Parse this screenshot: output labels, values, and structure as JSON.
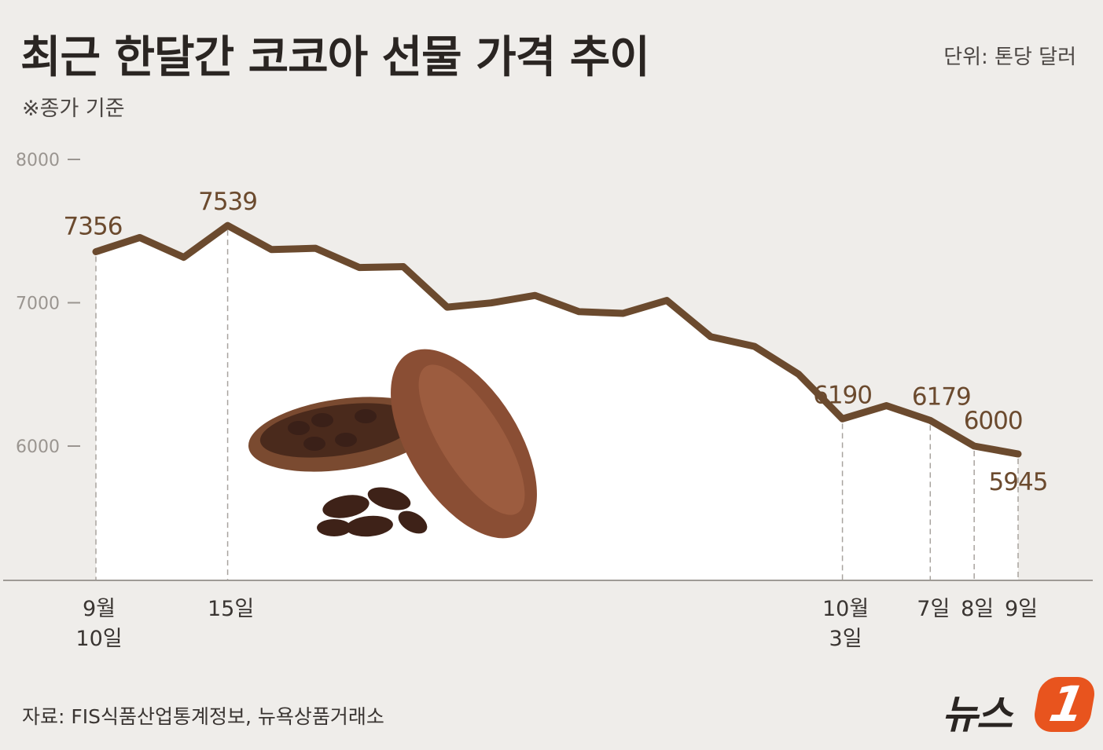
{
  "header": {
    "title": "최근 한달간 코코아 선물 가격 추이",
    "note": "※종가 기준",
    "unit": "단위: 톤당 달러"
  },
  "footer": {
    "source": "자료: FIS식품산업통계정보, 뉴욕상품거래소",
    "logo_text": "뉴스",
    "logo_badge": "1"
  },
  "colors": {
    "background": "#efedea",
    "plot_area": "#ffffff",
    "line": "#6b4a2e",
    "logo_accent": "#e8541e"
  },
  "icons": {
    "illustration": "cocoa-pod-icon"
  },
  "chart_data": {
    "type": "line",
    "title": "최근 한달간 코코아 선물 가격 추이",
    "ylabel": "단위: 톤당 달러",
    "ylim": [
      5000,
      8000
    ],
    "yticks": [
      6000,
      7000,
      8000
    ],
    "ytick_labels": [
      "6000",
      "7000",
      "8000"
    ],
    "grid": false,
    "series": [
      {
        "values": [
          7356,
          7455,
          7317,
          7539,
          7371,
          7380,
          7246,
          7252,
          6969,
          6999,
          7051,
          6938,
          6926,
          7016,
          6763,
          6695,
          6502,
          6190,
          6282,
          6179,
          6000,
          5945
        ]
      }
    ],
    "labeled_points": [
      {
        "index": 0,
        "label": "7356"
      },
      {
        "index": 3,
        "label": "7539"
      },
      {
        "index": 17,
        "label": "6190"
      },
      {
        "index": 19,
        "label": "6179"
      },
      {
        "index": 20,
        "label": "6000"
      },
      {
        "index": 21,
        "label": "5945"
      }
    ],
    "x_labels": [
      {
        "index": 0,
        "lines": [
          "9월",
          "10일"
        ]
      },
      {
        "index": 3,
        "lines": [
          "15일"
        ]
      },
      {
        "index": 17,
        "lines": [
          "10월",
          "3일"
        ]
      },
      {
        "index": 19,
        "lines": [
          "7일"
        ]
      },
      {
        "index": 20,
        "lines": [
          "8일"
        ]
      },
      {
        "index": 21,
        "lines": [
          "9일"
        ]
      }
    ]
  }
}
